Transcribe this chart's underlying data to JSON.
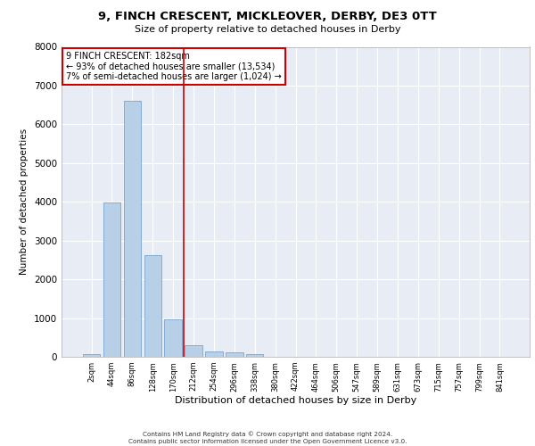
{
  "title": "9, FINCH CRESCENT, MICKLEOVER, DERBY, DE3 0TT",
  "subtitle": "Size of property relative to detached houses in Derby",
  "xlabel": "Distribution of detached houses by size in Derby",
  "ylabel": "Number of detached properties",
  "bar_categories": [
    "2sqm",
    "44sqm",
    "86sqm",
    "128sqm",
    "170sqm",
    "212sqm",
    "254sqm",
    "296sqm",
    "338sqm",
    "380sqm",
    "422sqm",
    "464sqm",
    "506sqm",
    "547sqm",
    "589sqm",
    "631sqm",
    "673sqm",
    "715sqm",
    "757sqm",
    "799sqm",
    "841sqm"
  ],
  "bar_values": [
    80,
    3980,
    6600,
    2620,
    970,
    310,
    140,
    110,
    80,
    0,
    0,
    0,
    0,
    0,
    0,
    0,
    0,
    0,
    0,
    0,
    0
  ],
  "bar_color": "#b8cfe8",
  "bar_edge_color": "#6699cc",
  "background_color": "#e8edf5",
  "grid_color": "#ffffff",
  "vline_x_index": 5,
  "vline_color": "#cc0000",
  "annotation_text": "9 FINCH CRESCENT: 182sqm\n← 93% of detached houses are smaller (13,534)\n7% of semi-detached houses are larger (1,024) →",
  "annotation_box_color": "#ffffff",
  "annotation_border_color": "#cc0000",
  "ylim": [
    0,
    8000
  ],
  "yticks": [
    0,
    1000,
    2000,
    3000,
    4000,
    5000,
    6000,
    7000,
    8000
  ],
  "footer_line1": "Contains HM Land Registry data © Crown copyright and database right 2024.",
  "footer_line2": "Contains public sector information licensed under the Open Government Licence v3.0."
}
